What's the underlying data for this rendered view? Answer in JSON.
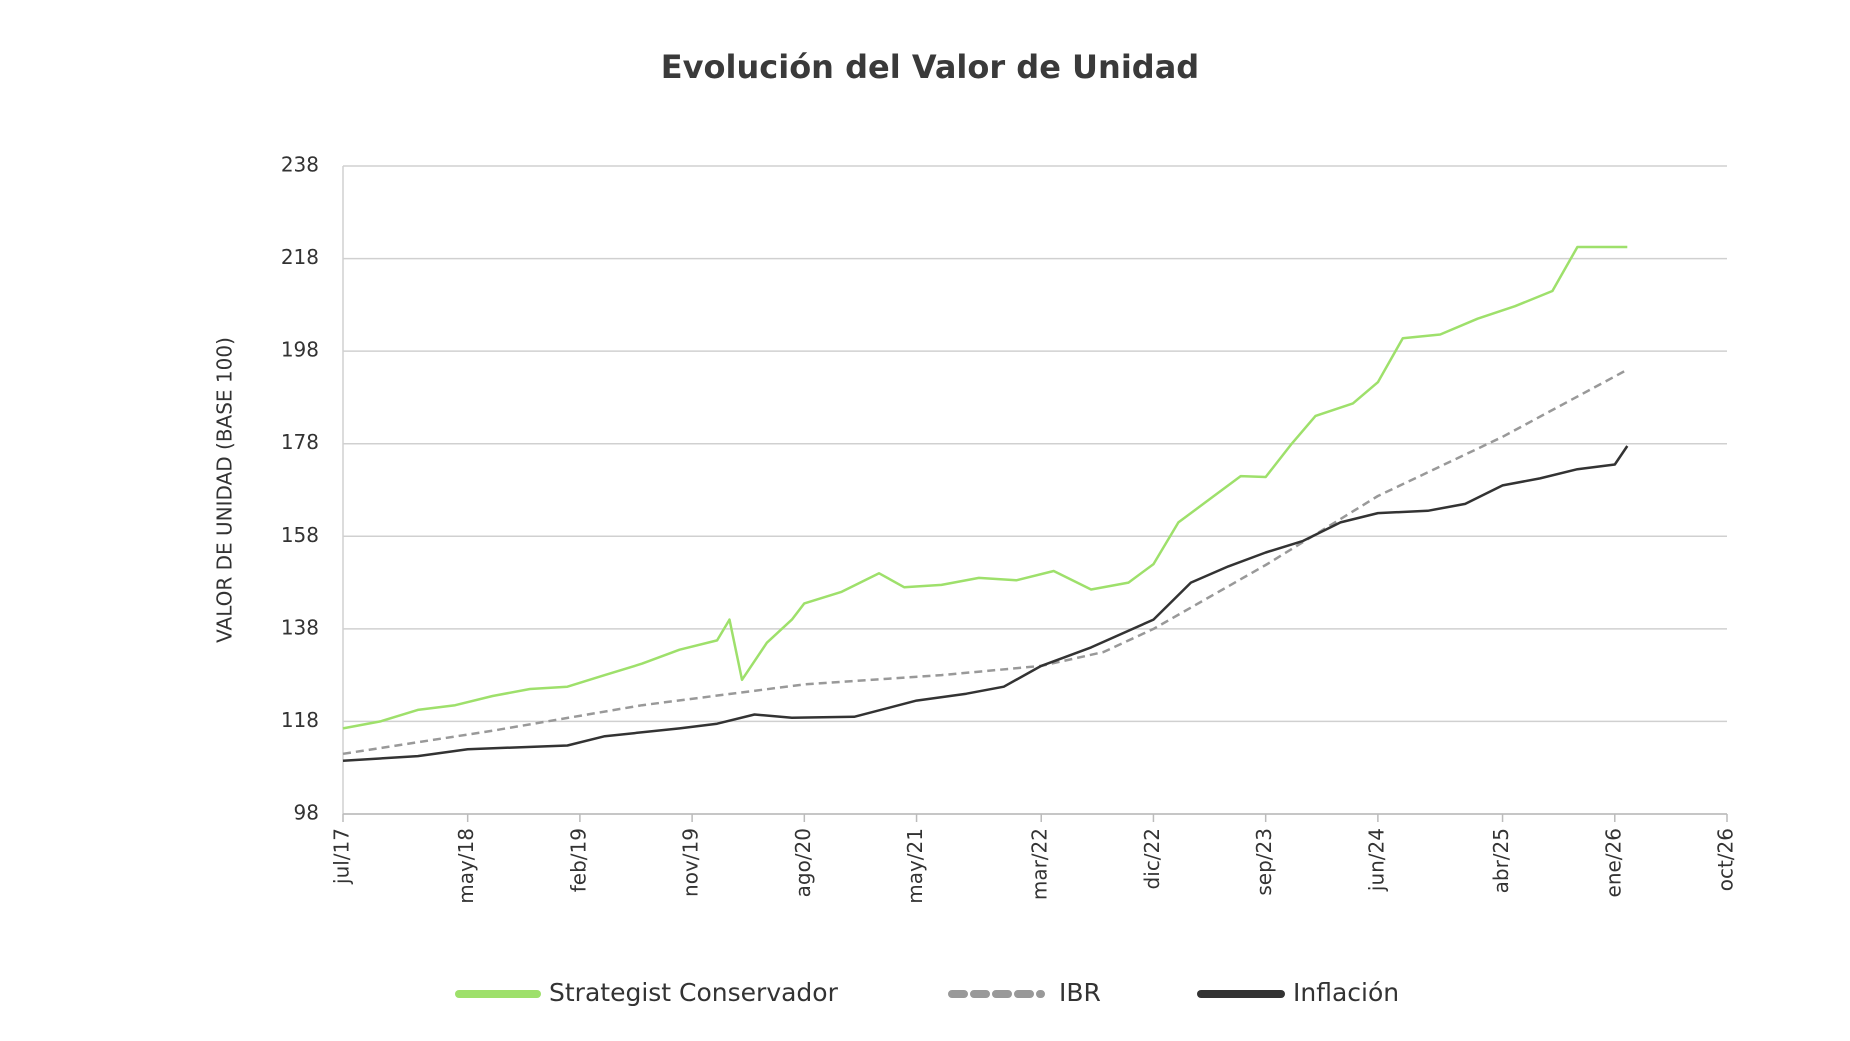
{
  "chart_data": {
    "type": "line",
    "title": "Evolución del Valor de Unidad",
    "y_label": "VALOR DE UNIDAD (BASE 100)",
    "ylim": [
      98,
      238
    ],
    "yticks": [
      98,
      118,
      138,
      158,
      178,
      198,
      218,
      238
    ],
    "grid": true,
    "xlim": [
      "2017-07",
      "2026-10"
    ],
    "xticks": [
      {
        "value": "2017-07",
        "label": "jul/17"
      },
      {
        "value": "2018-05",
        "label": "may/18"
      },
      {
        "value": "2019-02",
        "label": "feb/19"
      },
      {
        "value": "2019-11",
        "label": "nov/19"
      },
      {
        "value": "2020-08",
        "label": "ago/20"
      },
      {
        "value": "2021-05",
        "label": "may/21"
      },
      {
        "value": "2022-03",
        "label": "mar/22"
      },
      {
        "value": "2022-12",
        "label": "dic/22"
      },
      {
        "value": "2023-09",
        "label": "sep/23"
      },
      {
        "value": "2024-06",
        "label": "jun/24"
      },
      {
        "value": "2025-04",
        "label": "abr/25"
      },
      {
        "value": "2026-01",
        "label": "ene/26"
      },
      {
        "value": "2026-10",
        "label": "oct/26"
      }
    ],
    "legend": "bottom",
    "series": [
      {
        "name": "Strategist Conservador",
        "color": "#9ee06b",
        "style": "solid",
        "x": [
          "2017-07",
          "2017-10",
          "2018-01",
          "2018-04",
          "2018-07",
          "2018-10",
          "2019-01",
          "2019-04",
          "2019-07",
          "2019-10",
          "2020-01",
          "2020-02",
          "2020-03",
          "2020-05",
          "2020-07",
          "2020-08",
          "2020-11",
          "2021-02",
          "2021-04",
          "2021-07",
          "2021-10",
          "2022-01",
          "2022-04",
          "2022-07",
          "2022-10",
          "2022-12",
          "2023-02",
          "2023-04",
          "2023-07",
          "2023-09",
          "2023-11",
          "2024-01",
          "2024-04",
          "2024-06",
          "2024-08",
          "2024-11",
          "2025-02",
          "2025-05",
          "2025-08",
          "2025-10",
          "2026-01",
          "2026-02"
        ],
        "values": [
          116.5,
          118,
          120.5,
          121.5,
          123.5,
          125,
          125.5,
          128,
          130.5,
          133.5,
          135.5,
          140,
          127,
          135,
          140,
          143.5,
          146,
          150,
          147,
          147.5,
          149,
          148.5,
          150.5,
          146.5,
          148,
          152,
          161,
          165,
          171,
          170.8,
          177.7,
          184,
          186.7,
          191.3,
          200.8,
          201.6,
          205,
          207.7,
          211,
          220.5,
          220.5,
          220.5
        ]
      },
      {
        "name": "IBR",
        "color": "#999999",
        "style": "dashed",
        "x": [
          "2017-07",
          "2018-07",
          "2019-07",
          "2020-08",
          "2021-07",
          "2022-03",
          "2022-08",
          "2022-12",
          "2023-09",
          "2024-06",
          "2025-04",
          "2026-02"
        ],
        "values": [
          111,
          116,
          121.5,
          126,
          128,
          130,
          133,
          138,
          151.8,
          166.7,
          179.5,
          194
        ]
      },
      {
        "name": "Inflación",
        "color": "#333333",
        "style": "solid",
        "x": [
          "2017-07",
          "2018-01",
          "2018-05",
          "2019-01",
          "2019-04",
          "2019-10",
          "2020-01",
          "2020-04",
          "2020-07",
          "2020-12",
          "2021-05",
          "2021-09",
          "2021-12",
          "2022-03",
          "2022-07",
          "2022-12",
          "2023-03",
          "2023-06",
          "2023-09",
          "2023-12",
          "2024-03",
          "2024-06",
          "2024-10",
          "2025-01",
          "2025-04",
          "2025-07",
          "2025-10",
          "2026-01",
          "2026-02"
        ],
        "values": [
          109.5,
          110.5,
          112,
          112.8,
          114.8,
          116.5,
          117.5,
          119.5,
          118.8,
          119,
          122.5,
          124,
          125.5,
          130,
          134,
          140,
          148,
          151.5,
          154.5,
          157,
          161,
          163,
          163.5,
          165,
          169,
          170.5,
          172.5,
          173.5,
          177.5
        ]
      }
    ]
  }
}
